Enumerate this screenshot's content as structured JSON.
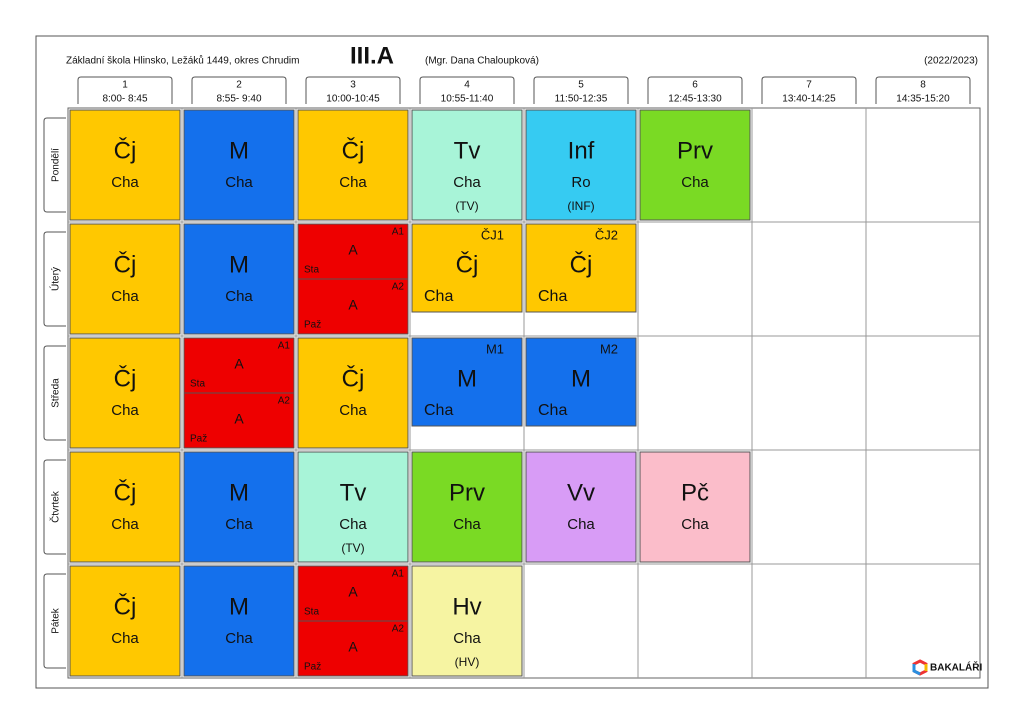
{
  "header": {
    "school": "Základní škola Hlinsko, Ležáků 1449, okres Chrudim",
    "class": "III.A",
    "teacher": "(Mgr. Dana Chaloupková)",
    "year": "(2022/2023)"
  },
  "periods": [
    {
      "number": "1",
      "time": "8:00- 8:45"
    },
    {
      "number": "2",
      "time": "8:55- 9:40"
    },
    {
      "number": "3",
      "time": "10:00-10:45"
    },
    {
      "number": "4",
      "time": "10:55-11:40"
    },
    {
      "number": "5",
      "time": "11:50-12:35"
    },
    {
      "number": "6",
      "time": "12:45-13:30"
    },
    {
      "number": "7",
      "time": "13:40-14:25"
    },
    {
      "number": "8",
      "time": "14:35-15:20"
    }
  ],
  "days": [
    {
      "name": "Pondělí",
      "lessons": [
        {
          "kind": "full",
          "subject": "Čj",
          "teacher": "Cha",
          "color": "#ffc800"
        },
        {
          "kind": "full",
          "subject": "M",
          "teacher": "Cha",
          "color": "#1470ec"
        },
        {
          "kind": "full",
          "subject": "Čj",
          "teacher": "Cha",
          "color": "#ffc800"
        },
        {
          "kind": "full",
          "subject": "Tv",
          "teacher": "Cha",
          "room": "(TV)",
          "color": "#a8f4d8"
        },
        {
          "kind": "full",
          "subject": "Inf",
          "teacher": "Ro",
          "room": "(INF)",
          "color": "#36cbf2"
        },
        {
          "kind": "full",
          "subject": "Prv",
          "teacher": "Cha",
          "color": "#7ada24"
        },
        null,
        null
      ]
    },
    {
      "name": "Úterý",
      "lessons": [
        {
          "kind": "full",
          "subject": "Čj",
          "teacher": "Cha",
          "color": "#ffc800"
        },
        {
          "kind": "full",
          "subject": "M",
          "teacher": "Cha",
          "color": "#1470ec"
        },
        {
          "kind": "split",
          "color": "#ee0000",
          "parts": [
            {
              "subject": "A",
              "teacher": "Sta",
              "group": "A1"
            },
            {
              "subject": "A",
              "teacher": "Paž",
              "group": "A2"
            }
          ]
        },
        {
          "kind": "group",
          "subject": "Čj",
          "teacher": "Cha",
          "group": "ČJ1",
          "color": "#ffc800"
        },
        {
          "kind": "group",
          "subject": "Čj",
          "teacher": "Cha",
          "group": "ČJ2",
          "color": "#ffc800"
        },
        null,
        null,
        null
      ]
    },
    {
      "name": "Středa",
      "lessons": [
        {
          "kind": "full",
          "subject": "Čj",
          "teacher": "Cha",
          "color": "#ffc800"
        },
        {
          "kind": "split",
          "color": "#ee0000",
          "parts": [
            {
              "subject": "A",
              "teacher": "Sta",
              "group": "A1"
            },
            {
              "subject": "A",
              "teacher": "Paž",
              "group": "A2"
            }
          ]
        },
        {
          "kind": "full",
          "subject": "Čj",
          "teacher": "Cha",
          "color": "#ffc800"
        },
        {
          "kind": "group",
          "subject": "M",
          "teacher": "Cha",
          "group": "M1",
          "color": "#1470ec"
        },
        {
          "kind": "group",
          "subject": "M",
          "teacher": "Cha",
          "group": "M2",
          "color": "#1470ec"
        },
        null,
        null,
        null
      ]
    },
    {
      "name": "Čtvrtek",
      "lessons": [
        {
          "kind": "full",
          "subject": "Čj",
          "teacher": "Cha",
          "color": "#ffc800"
        },
        {
          "kind": "full",
          "subject": "M",
          "teacher": "Cha",
          "color": "#1470ec"
        },
        {
          "kind": "full",
          "subject": "Tv",
          "teacher": "Cha",
          "room": "(TV)",
          "color": "#a8f4d8"
        },
        {
          "kind": "full",
          "subject": "Prv",
          "teacher": "Cha",
          "color": "#7ada24"
        },
        {
          "kind": "full",
          "subject": "Vv",
          "teacher": "Cha",
          "color": "#d89cf6"
        },
        {
          "kind": "full",
          "subject": "Pč",
          "teacher": "Cha",
          "color": "#fbbdca"
        },
        null,
        null
      ]
    },
    {
      "name": "Pátek",
      "lessons": [
        {
          "kind": "full",
          "subject": "Čj",
          "teacher": "Cha",
          "color": "#ffc800"
        },
        {
          "kind": "full",
          "subject": "M",
          "teacher": "Cha",
          "color": "#1470ec"
        },
        {
          "kind": "split",
          "color": "#ee0000",
          "parts": [
            {
              "subject": "A",
              "teacher": "Sta",
              "group": "A1"
            },
            {
              "subject": "A",
              "teacher": "Paž",
              "group": "A2"
            }
          ]
        },
        {
          "kind": "full",
          "subject": "Hv",
          "teacher": "Cha",
          "room": "(HV)",
          "color": "#f6f4a2"
        },
        null,
        null,
        null,
        null
      ]
    }
  ],
  "logo": "BAKALÁŘI"
}
